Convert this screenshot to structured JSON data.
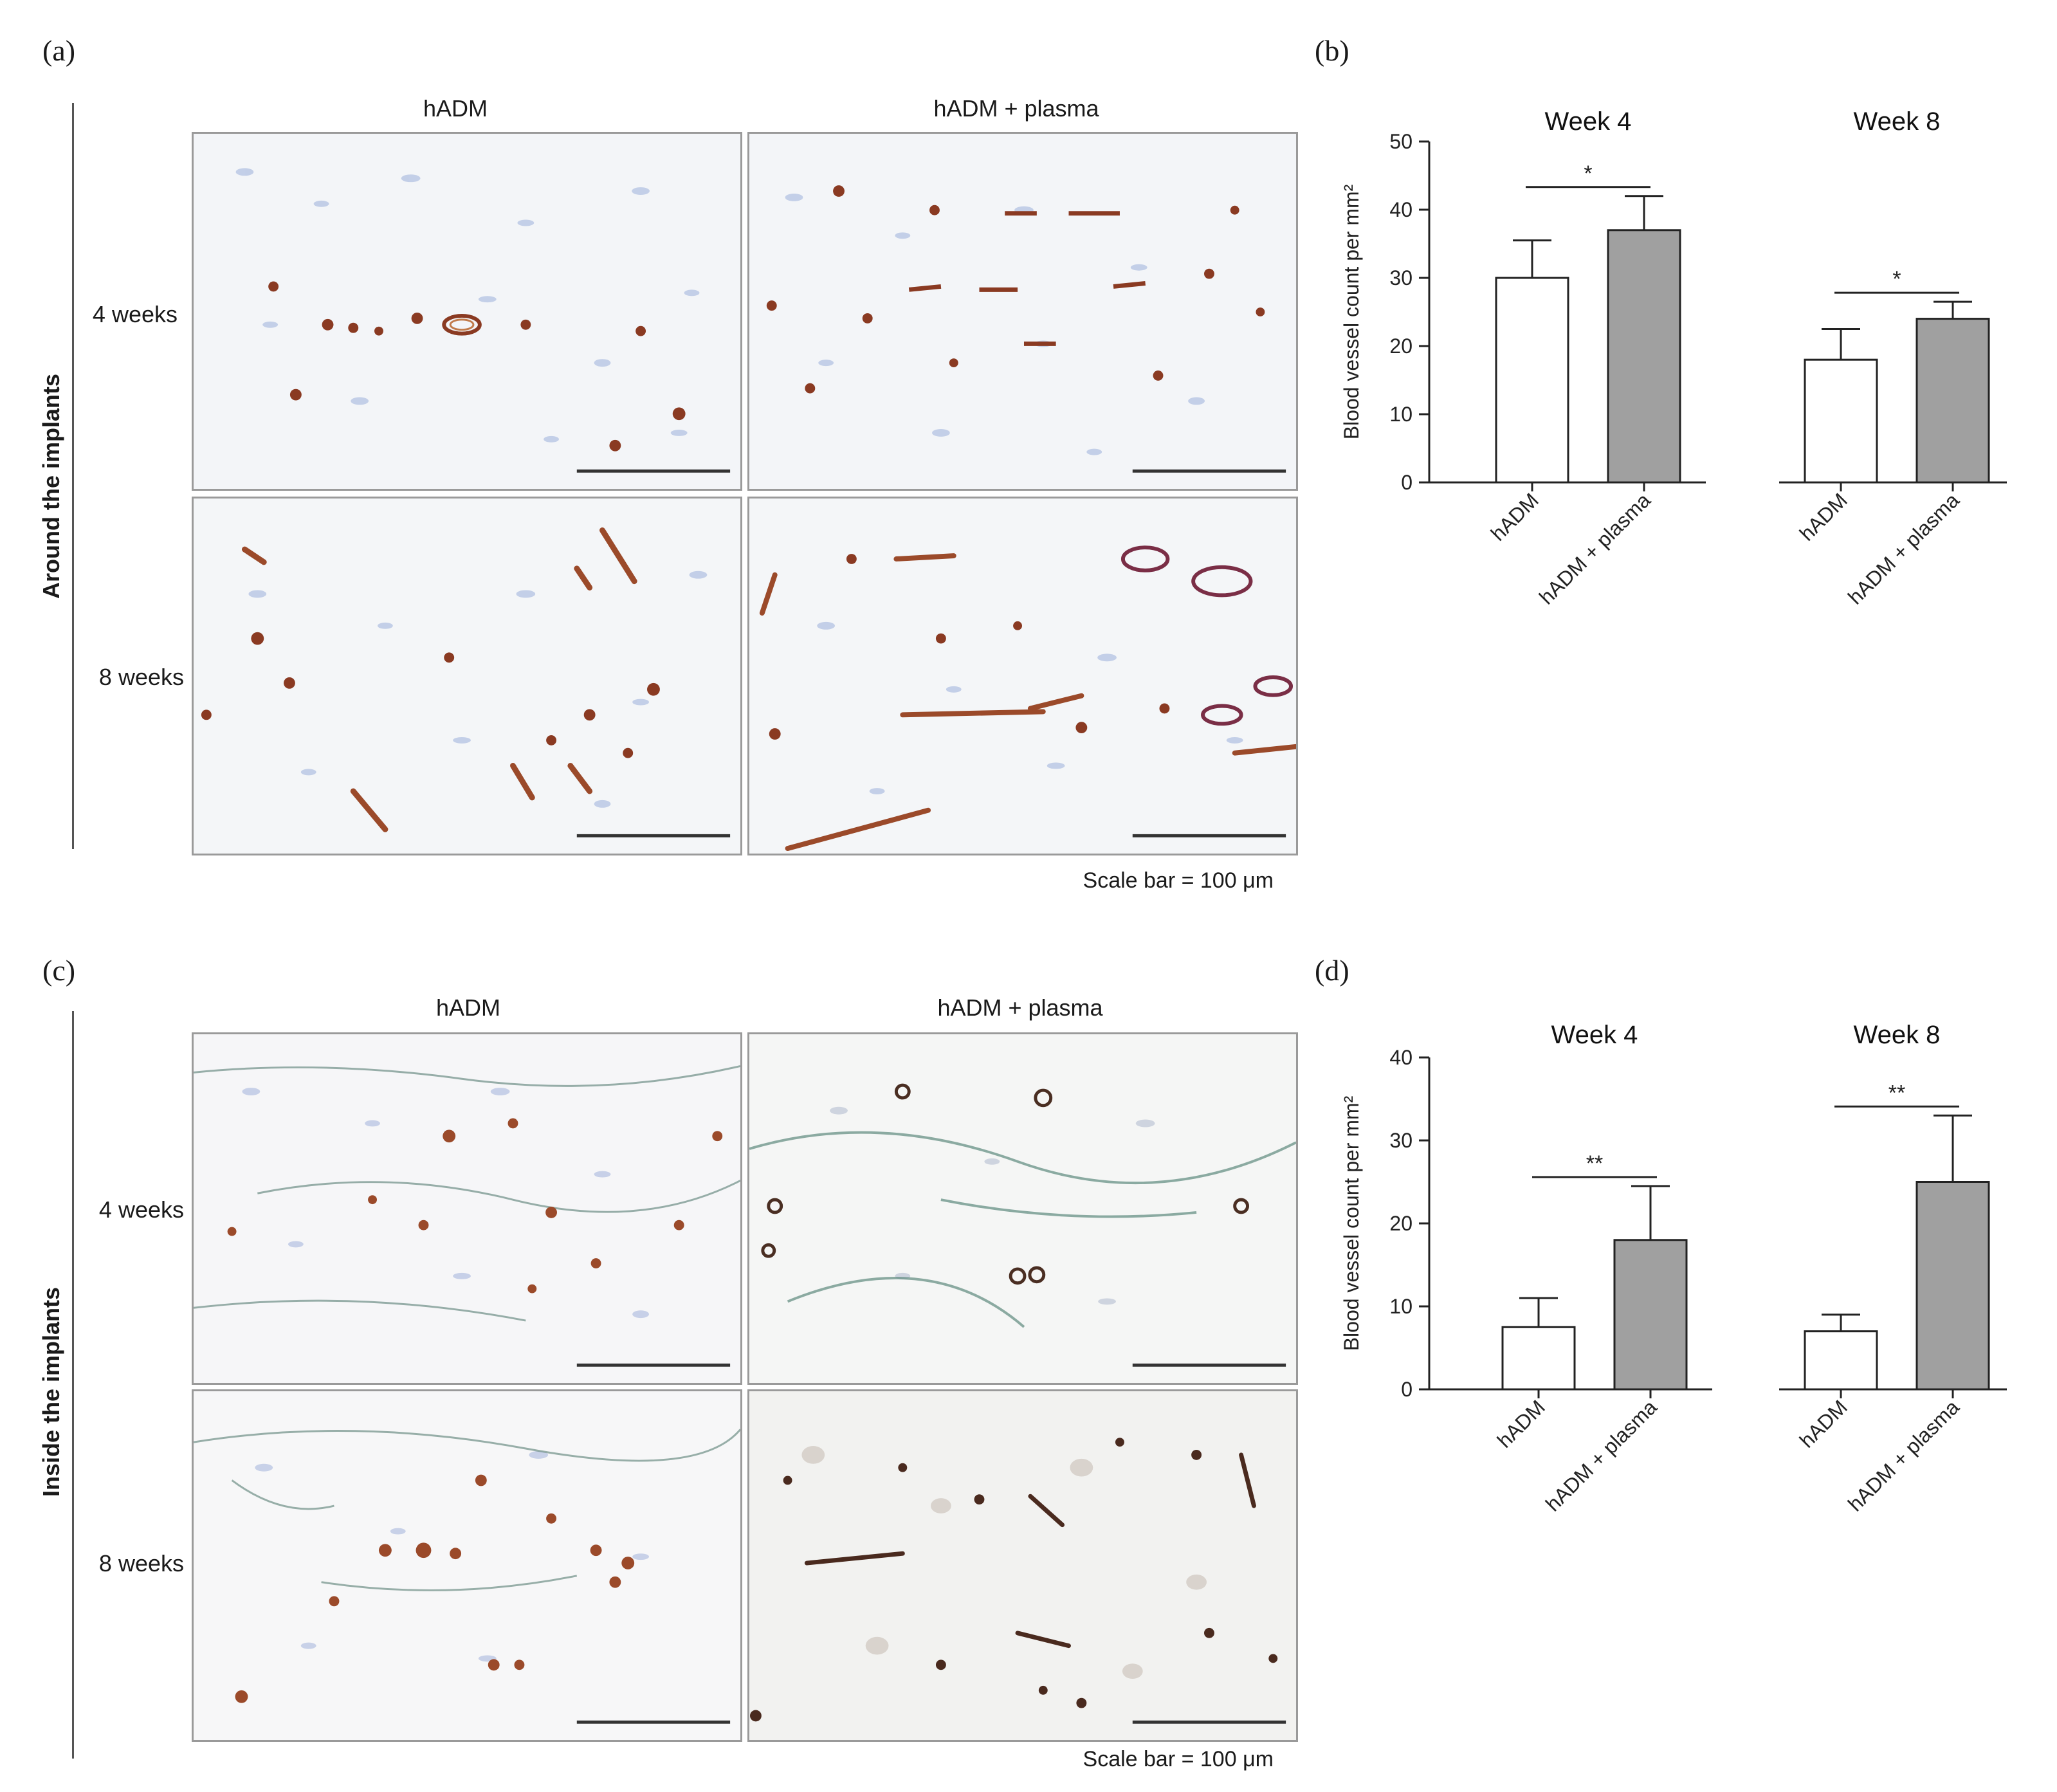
{
  "panel_a": {
    "letter": "(a)",
    "side_label": "Around the implants",
    "col_headers": [
      "hADM",
      "hADM + plasma"
    ],
    "row_labels": [
      "4 weeks",
      "8 weeks"
    ],
    "scale_bar": "Scale bar = 100 μm"
  },
  "panel_b": {
    "letter": "(b)"
  },
  "panel_c": {
    "letter": "(c)",
    "side_label": "Inside the implants",
    "col_headers": [
      "hADM",
      "hADM + plasma"
    ],
    "row_labels": [
      "4 weeks",
      "8 weeks"
    ],
    "scale_bar": "Scale bar = 100 μm"
  },
  "panel_d": {
    "letter": "(d)"
  },
  "chart_data": [
    {
      "type": "bar",
      "panel": "b",
      "ylabel": "Blood vessel count per mm²",
      "ylim": [
        0,
        50
      ],
      "yticks": [
        0,
        10,
        20,
        30,
        40,
        50
      ],
      "groups": [
        {
          "title": "Week 4",
          "categories": [
            "hADM",
            "hADM + plasma"
          ],
          "values": [
            30,
            37
          ],
          "errors": [
            5.5,
            5
          ],
          "significance": "*"
        },
        {
          "title": "Week 8",
          "categories": [
            "hADM",
            "hADM + plasma"
          ],
          "values": [
            18,
            24
          ],
          "errors": [
            4.5,
            2.5
          ],
          "significance": "*"
        }
      ],
      "colors": [
        "#ffffff",
        "#a0a0a0"
      ]
    },
    {
      "type": "bar",
      "panel": "d",
      "ylabel": "Blood vessel count per mm²",
      "ylim": [
        0,
        40
      ],
      "yticks": [
        0,
        10,
        20,
        30,
        40
      ],
      "groups": [
        {
          "title": "Week 4",
          "categories": [
            "hADM",
            "hADM + plasma"
          ],
          "values": [
            7.5,
            18
          ],
          "errors": [
            3.5,
            6.5
          ],
          "significance": "**"
        },
        {
          "title": "Week 8",
          "categories": [
            "hADM",
            "hADM + plasma"
          ],
          "values": [
            7,
            25
          ],
          "errors": [
            2,
            8
          ],
          "significance": "**"
        }
      ],
      "colors": [
        "#ffffff",
        "#a0a0a0"
      ]
    }
  ]
}
